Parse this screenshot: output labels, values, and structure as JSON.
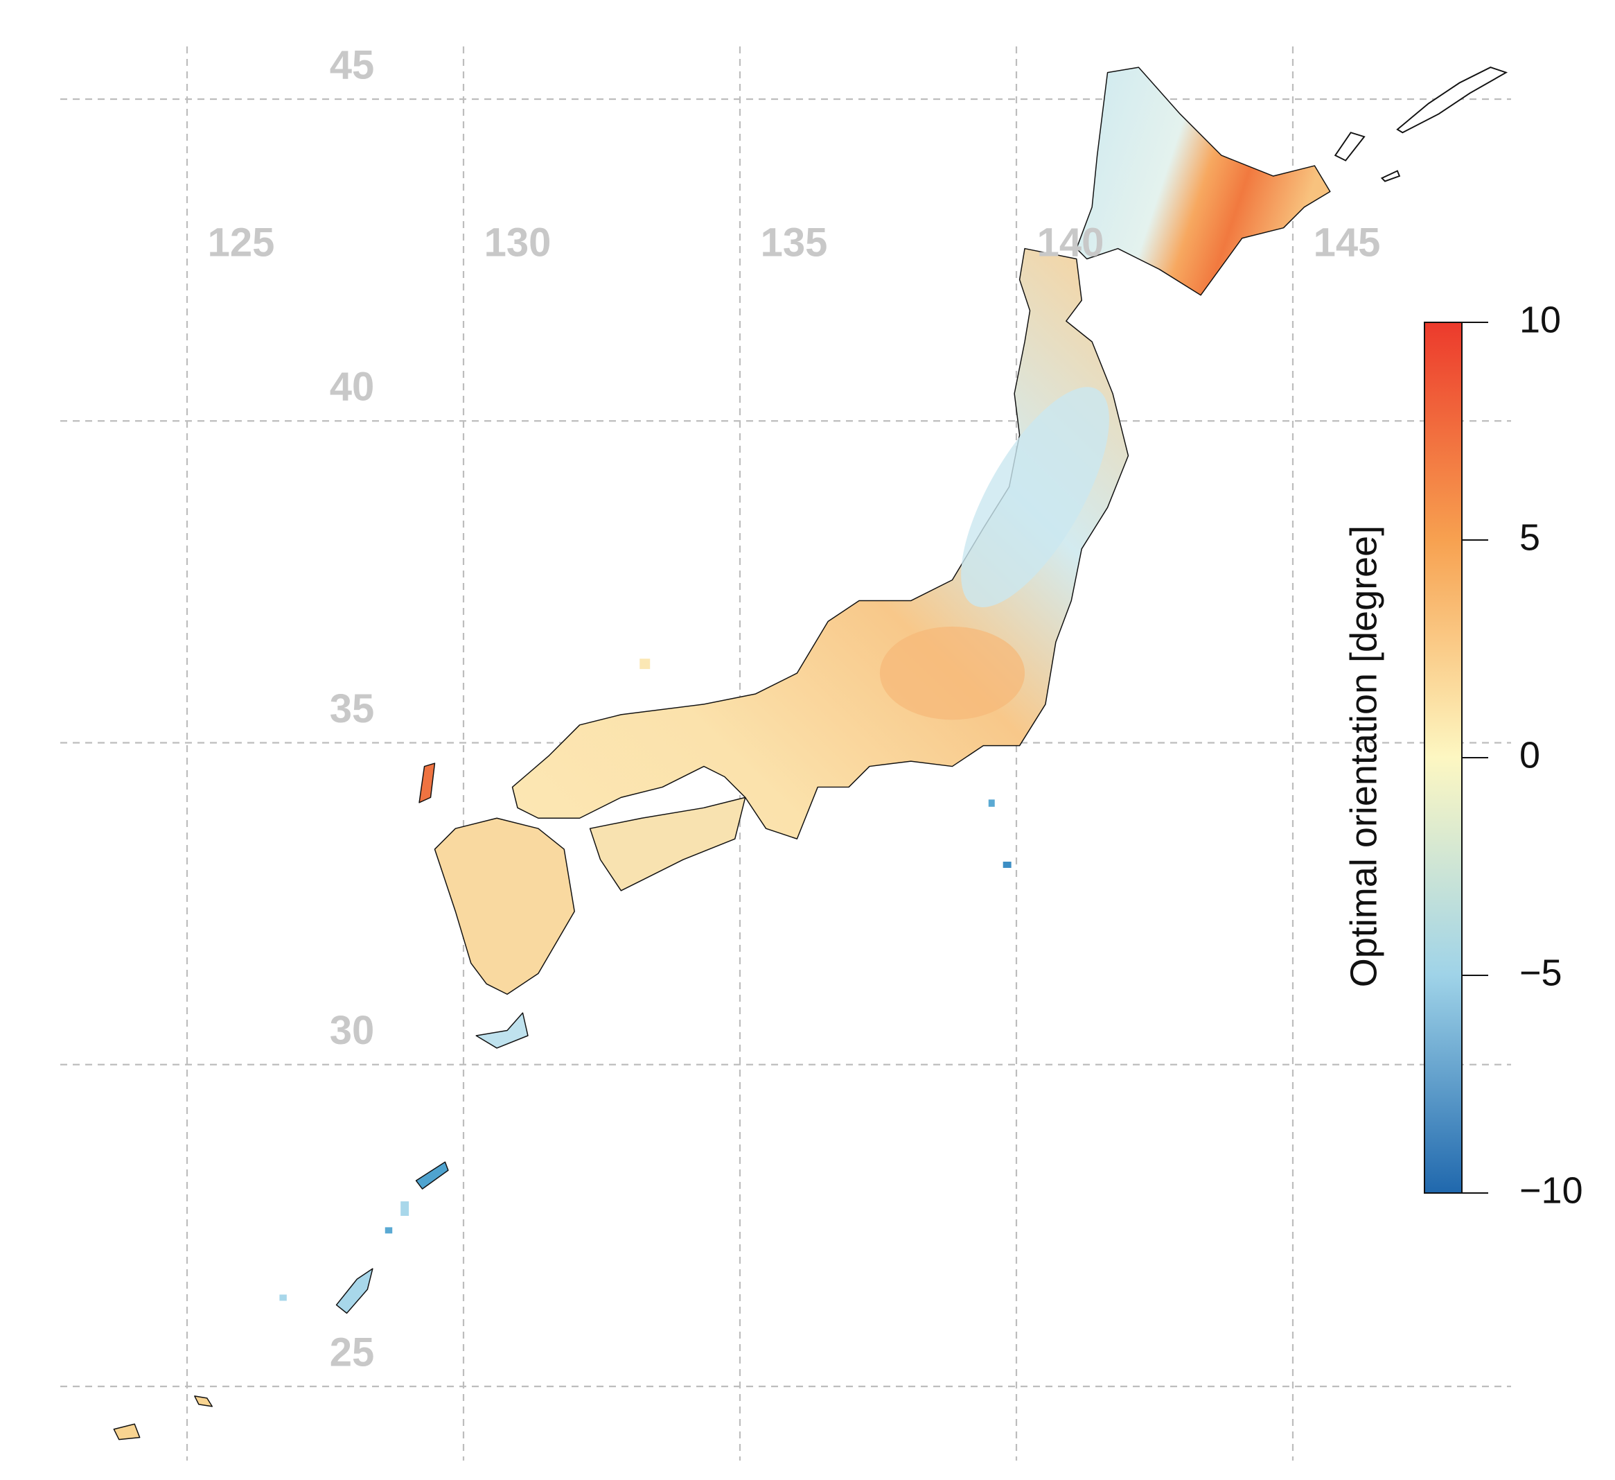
{
  "map": {
    "lon_ticks": [
      125,
      130,
      135,
      140,
      145
    ],
    "lat_ticks": [
      45,
      40,
      35,
      30,
      25
    ]
  },
  "colorbar": {
    "label": "Optimal orientation [degree]",
    "ticks": [
      10,
      5,
      0,
      {
        "value": -5,
        "label": "−5"
      },
      {
        "value": -10,
        "label": "−10"
      }
    ]
  }
}
